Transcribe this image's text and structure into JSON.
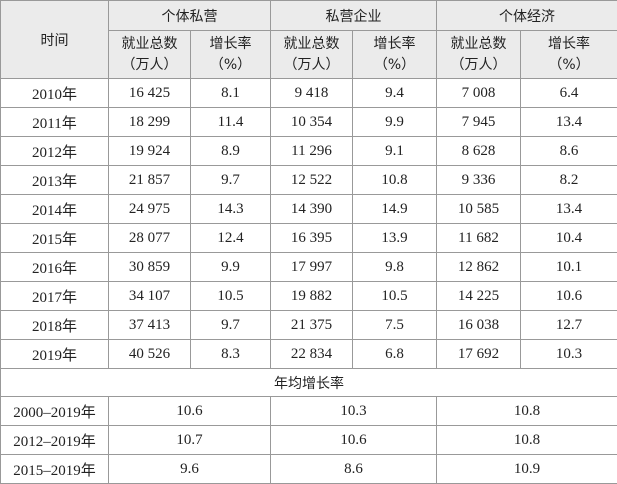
{
  "table": {
    "header": {
      "time": "时间",
      "groups": [
        "个体私营",
        "私营企业",
        "个体经济"
      ],
      "subheaders": [
        [
          "就业总数",
          "（万人）"
        ],
        [
          "增长率",
          "（%）"
        ],
        [
          "就业总数",
          "（万人）"
        ],
        [
          "增长率",
          "（%）"
        ],
        [
          "就业总数",
          "（万人）"
        ],
        [
          "增长率",
          "（%）"
        ]
      ]
    },
    "rows": [
      [
        "2010年",
        "16 425",
        "8.1",
        "9 418",
        "9.4",
        "7 008",
        "6.4"
      ],
      [
        "2011年",
        "18 299",
        "11.4",
        "10 354",
        "9.9",
        "7 945",
        "13.4"
      ],
      [
        "2012年",
        "19 924",
        "8.9",
        "11 296",
        "9.1",
        "8 628",
        "8.6"
      ],
      [
        "2013年",
        "21 857",
        "9.7",
        "12 522",
        "10.8",
        "9 336",
        "8.2"
      ],
      [
        "2014年",
        "24 975",
        "14.3",
        "14 390",
        "14.9",
        "10 585",
        "13.4"
      ],
      [
        "2015年",
        "28 077",
        "12.4",
        "16 395",
        "13.9",
        "11 682",
        "10.4"
      ],
      [
        "2016年",
        "30 859",
        "9.9",
        "17 997",
        "9.8",
        "12 862",
        "10.1"
      ],
      [
        "2017年",
        "34 107",
        "10.5",
        "19 882",
        "10.5",
        "14 225",
        "10.6"
      ],
      [
        "2018年",
        "37 413",
        "9.7",
        "21 375",
        "7.5",
        "16 038",
        "12.7"
      ],
      [
        "2019年",
        "40 526",
        "8.3",
        "22 834",
        "6.8",
        "17 692",
        "10.3"
      ]
    ],
    "average_title": "年均增长率",
    "average_rows": [
      [
        "2000–2019年",
        "10.6",
        "10.3",
        "10.8"
      ],
      [
        "2012–2019年",
        "10.7",
        "10.6",
        "10.8"
      ],
      [
        "2015–2019年",
        "9.6",
        "8.6",
        "10.9"
      ]
    ]
  }
}
